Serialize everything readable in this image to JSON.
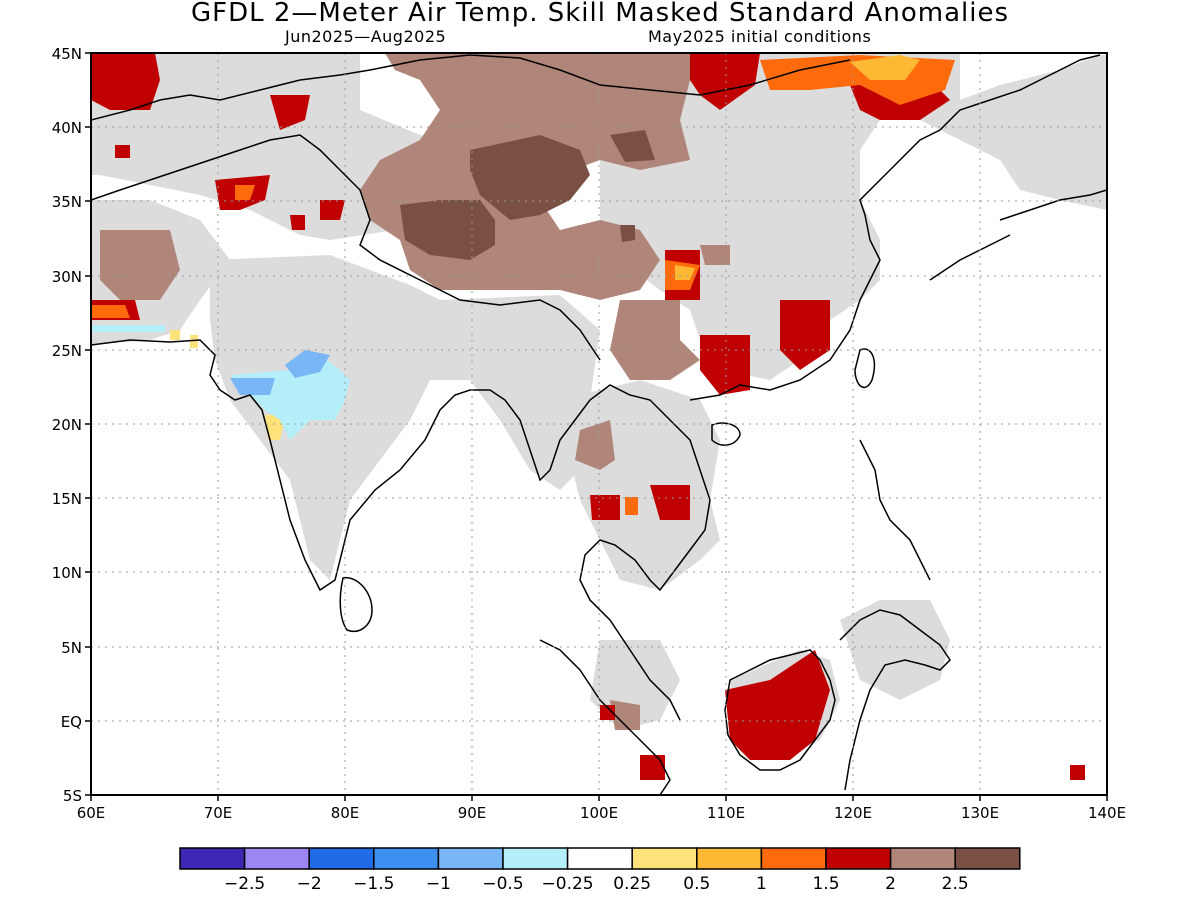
{
  "title": "GFDL 2—Meter Air Temp. Skill Masked Standard Anomalies",
  "subtitle_left": "Jun2025—Aug2025",
  "subtitle_right": "May2025 initial conditions",
  "map": {
    "lon_range": [
      60,
      140
    ],
    "lat_range": [
      -5,
      45
    ],
    "lat_labels": [
      "45N",
      "40N",
      "35N",
      "30N",
      "25N",
      "20N",
      "15N",
      "10N",
      "5N",
      "EQ",
      "5S"
    ],
    "lon_labels": [
      "60E",
      "70E",
      "80E",
      "90E",
      "100E",
      "110E",
      "120E",
      "130E",
      "140E"
    ]
  },
  "colorbar": {
    "colors": [
      "#3c28b4",
      "#9b86f2",
      "#1f6be8",
      "#3d8ff0",
      "#78b6f5",
      "#b4eef8",
      "#ffffff",
      "#ffe27a",
      "#fdb933",
      "#ff6a0d",
      "#c00000",
      "#b0857a",
      "#7a5044"
    ],
    "labels": [
      "-2.5",
      "-2",
      "-1.5",
      "-1",
      "-0.5",
      "-0.25",
      "0.25",
      "0.5",
      "1",
      "1.5",
      "2",
      "2.5"
    ]
  },
  "shading_colors": {
    "no_skill": "#dcdcdc",
    "warm_brown": "#b0857a",
    "dark_brown": "#7a5044",
    "red": "#c00000",
    "orange": "#ff6a0d",
    "yellow_orange": "#fdb933",
    "light_blue": "#b4eef8",
    "mid_blue": "#78b6f5"
  }
}
